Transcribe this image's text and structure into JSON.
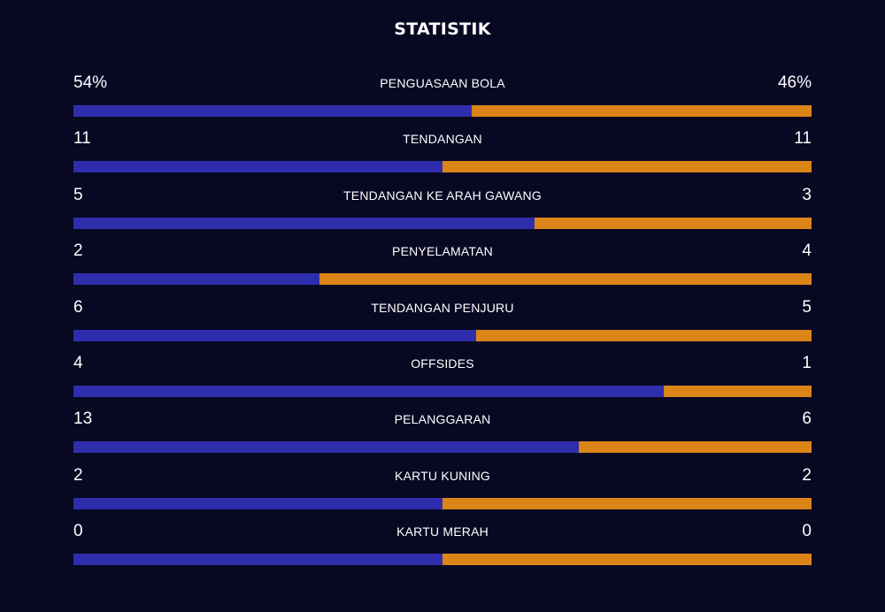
{
  "title": "STATISTIK",
  "colors": {
    "background": "#080823",
    "home": "#2e2ead",
    "away": "#db8518"
  },
  "stats": [
    {
      "label": "PENGUASAAN BOLA",
      "home": "54%",
      "away": "46%",
      "home_share": 0.54
    },
    {
      "label": "TENDANGAN",
      "home": "11",
      "away": "11",
      "home_share": 0.5
    },
    {
      "label": "TENDANGAN KE ARAH GAWANG",
      "home": "5",
      "away": "3",
      "home_share": 0.625
    },
    {
      "label": "PENYELAMATAN",
      "home": "2",
      "away": "4",
      "home_share": 0.3333
    },
    {
      "label": "TENDANGAN PENJURU",
      "home": "6",
      "away": "5",
      "home_share": 0.5455
    },
    {
      "label": "OFFSIDES",
      "home": "4",
      "away": "1",
      "home_share": 0.8
    },
    {
      "label": "PELANGGARAN",
      "home": "13",
      "away": "6",
      "home_share": 0.6842
    },
    {
      "label": "KARTU KUNING",
      "home": "2",
      "away": "2",
      "home_share": 0.5
    },
    {
      "label": "KARTU MERAH",
      "home": "0",
      "away": "0",
      "home_share": 0.5
    }
  ]
}
